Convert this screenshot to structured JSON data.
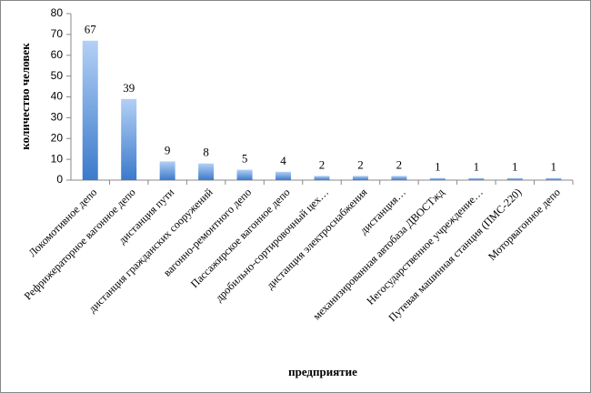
{
  "chart_data": {
    "type": "bar",
    "x_label": "предприятие",
    "y_label": "количество человек",
    "categories": [
      "Локомотивное депо",
      "Рефрижераторное вагонное депо",
      "дистанция пути",
      "дистанция гражданских сооружений",
      "вагонно-ремонтного депо",
      "Пассажирское вагонное депо",
      "дробильно-сортировочный цех…",
      "дистанция электроснабжения",
      "дистанция…",
      "механизированная автобаза ДВОСТжд",
      "Негосударственное учреждение…",
      "Путевая машинная станция (ПМС-220)",
      "Моторвагонное депо"
    ],
    "values": [
      67,
      39,
      9,
      8,
      5,
      4,
      2,
      2,
      2,
      1,
      1,
      1,
      1
    ],
    "color": "#3b7acb",
    "ylim": [
      0,
      80
    ],
    "yticks": [
      0,
      10,
      20,
      30,
      40,
      50,
      60,
      70,
      80
    ],
    "grid": false
  }
}
